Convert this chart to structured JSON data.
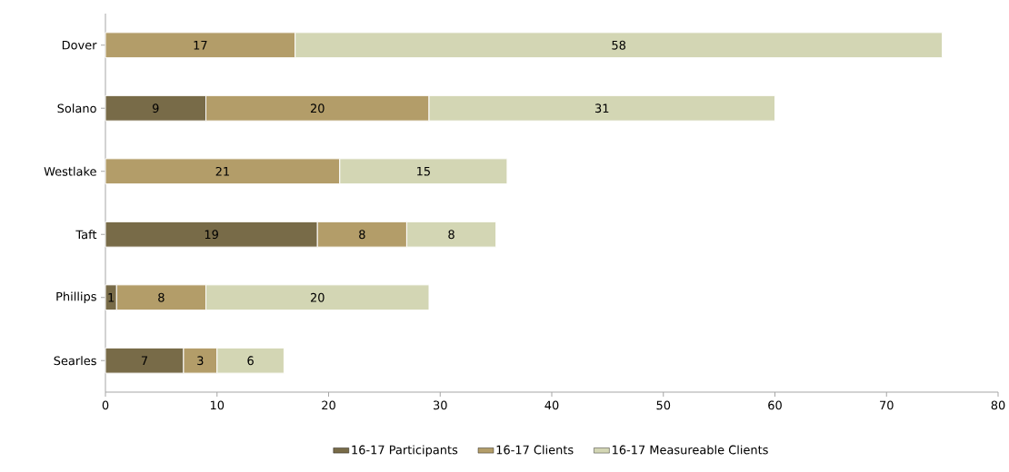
{
  "chart_data": {
    "type": "bar",
    "orientation": "horizontal",
    "stacked": true,
    "categories": [
      "Dover",
      "Solano",
      "Westlake",
      "Taft",
      "Phillips",
      "Searles"
    ],
    "series": [
      {
        "name": "16-17 Participants",
        "color": "#786b48",
        "values": [
          null,
          9,
          null,
          19,
          1,
          7
        ]
      },
      {
        "name": "16-17 Clients",
        "color": "#b39d69",
        "values": [
          17,
          20,
          21,
          8,
          8,
          3
        ]
      },
      {
        "name": "16-17 Measureable Clients",
        "color": "#d3d6b4",
        "values": [
          58,
          31,
          15,
          8,
          20,
          6
        ]
      }
    ],
    "xlim": [
      0,
      80
    ],
    "xticks": [
      0,
      10,
      20,
      30,
      40,
      50,
      60,
      70,
      80
    ],
    "data_labels": true,
    "legend": "bottom",
    "grid": false
  }
}
